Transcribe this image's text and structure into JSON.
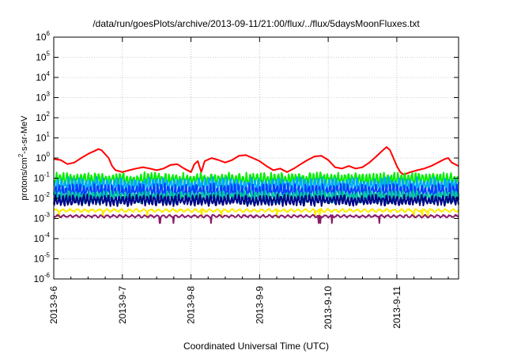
{
  "chart_data": {
    "type": "line",
    "title": "/data/run/goesPlots/archive/2013-09-11/21:00/flux/../flux/5daysMoonFluxes.txt",
    "xlabel": "Coordinated Universal Time (UTC)",
    "ylabel": {
      "main": "protons/cm",
      "sup": "2",
      "rest": "-s-sr-MeV"
    },
    "xlim": [
      0,
      5.9
    ],
    "x_ticks": [
      {
        "value": 0,
        "label": "2013-9-6"
      },
      {
        "value": 1,
        "label": "2013-9-7"
      },
      {
        "value": 2,
        "label": "2013-9-8"
      },
      {
        "value": 3,
        "label": "2013-9-9"
      },
      {
        "value": 4,
        "label": "2013-9-10"
      },
      {
        "value": 5,
        "label": "2013-9-11"
      }
    ],
    "y_scale": "log",
    "ylim_exp": [
      -6,
      6
    ],
    "y_ticks": [
      {
        "exp": 6,
        "base": "10",
        "sup": "6"
      },
      {
        "exp": 5,
        "base": "10",
        "sup": "5"
      },
      {
        "exp": 4,
        "base": "10",
        "sup": "4"
      },
      {
        "exp": 3,
        "base": "10",
        "sup": "3"
      },
      {
        "exp": 2,
        "base": "10",
        "sup": "2"
      },
      {
        "exp": 1,
        "base": "10",
        "sup": "1"
      },
      {
        "exp": 0,
        "base": "10",
        "sup": "0"
      },
      {
        "exp": -1,
        "base": "10",
        "sup": "-1"
      },
      {
        "exp": -2,
        "base": "10",
        "sup": "-2"
      },
      {
        "exp": -3,
        "base": "10",
        "sup": "-3"
      },
      {
        "exp": -4,
        "base": "10",
        "sup": "-4"
      },
      {
        "exp": -5,
        "base": "10",
        "sup": "-5"
      },
      {
        "exp": -6,
        "base": "10",
        "sup": "-6"
      }
    ],
    "grid": true,
    "series": [
      {
        "color": "#ff0000",
        "points": [
          [
            0,
            0.9
          ],
          [
            0.1,
            0.8
          ],
          [
            0.2,
            0.5
          ],
          [
            0.3,
            0.6
          ],
          [
            0.4,
            1.0
          ],
          [
            0.5,
            1.6
          ],
          [
            0.6,
            2.3
          ],
          [
            0.65,
            2.8
          ],
          [
            0.7,
            2.4
          ],
          [
            0.8,
            1.0
          ],
          [
            0.85,
            0.4
          ],
          [
            0.9,
            0.25
          ],
          [
            1.0,
            0.2
          ],
          [
            1.1,
            0.25
          ],
          [
            1.2,
            0.3
          ],
          [
            1.3,
            0.35
          ],
          [
            1.4,
            0.3
          ],
          [
            1.5,
            0.25
          ],
          [
            1.6,
            0.3
          ],
          [
            1.7,
            0.45
          ],
          [
            1.8,
            0.5
          ],
          [
            1.9,
            0.3
          ],
          [
            2.0,
            0.2
          ],
          [
            2.05,
            0.5
          ],
          [
            2.1,
            0.7
          ],
          [
            2.15,
            0.2
          ],
          [
            2.2,
            0.7
          ],
          [
            2.3,
            1.0
          ],
          [
            2.4,
            0.8
          ],
          [
            2.5,
            0.6
          ],
          [
            2.6,
            0.8
          ],
          [
            2.7,
            1.3
          ],
          [
            2.8,
            1.4
          ],
          [
            2.9,
            1.0
          ],
          [
            3.0,
            0.7
          ],
          [
            3.1,
            0.4
          ],
          [
            3.2,
            0.25
          ],
          [
            3.3,
            0.3
          ],
          [
            3.4,
            0.2
          ],
          [
            3.5,
            0.3
          ],
          [
            3.6,
            0.5
          ],
          [
            3.7,
            0.8
          ],
          [
            3.8,
            1.2
          ],
          [
            3.9,
            1.3
          ],
          [
            4.0,
            0.8
          ],
          [
            4.1,
            0.35
          ],
          [
            4.2,
            0.3
          ],
          [
            4.3,
            0.4
          ],
          [
            4.4,
            0.3
          ],
          [
            4.5,
            0.35
          ],
          [
            4.6,
            0.6
          ],
          [
            4.7,
            1.2
          ],
          [
            4.8,
            2.5
          ],
          [
            4.85,
            3.5
          ],
          [
            4.9,
            2.5
          ],
          [
            4.95,
            1.0
          ],
          [
            5.0,
            0.4
          ],
          [
            5.05,
            0.2
          ],
          [
            5.1,
            0.15
          ],
          [
            5.2,
            0.2
          ],
          [
            5.3,
            0.25
          ],
          [
            5.4,
            0.3
          ],
          [
            5.5,
            0.4
          ],
          [
            5.6,
            0.6
          ],
          [
            5.7,
            0.9
          ],
          [
            5.75,
            1.0
          ],
          [
            5.8,
            0.6
          ],
          [
            5.9,
            0.4
          ]
        ]
      },
      {
        "color": "#00ee00",
        "base": 0.085,
        "amp": 0.25,
        "freq": 23,
        "seed": 3
      },
      {
        "color": "#00a8ff",
        "base": 0.045,
        "amp": 0.28,
        "freq": 23,
        "seed": 7
      },
      {
        "color": "#0040ff",
        "base": 0.022,
        "amp": 0.28,
        "freq": 23,
        "seed": 11
      },
      {
        "color": "#00c8a0",
        "base": 0.012,
        "amp": 0.22,
        "freq": 23,
        "seed": 13
      },
      {
        "color": "#000088",
        "base": 0.008,
        "amp": 0.2,
        "freq": 23,
        "seed": 17
      },
      {
        "color": "#ffee00",
        "base": 0.0025,
        "amp": 0.06,
        "freq": 11,
        "seed": 19
      },
      {
        "color": "#8b1a6b",
        "base": 0.0013,
        "amp": 0.05,
        "freq": 13,
        "seed": 23
      }
    ]
  }
}
